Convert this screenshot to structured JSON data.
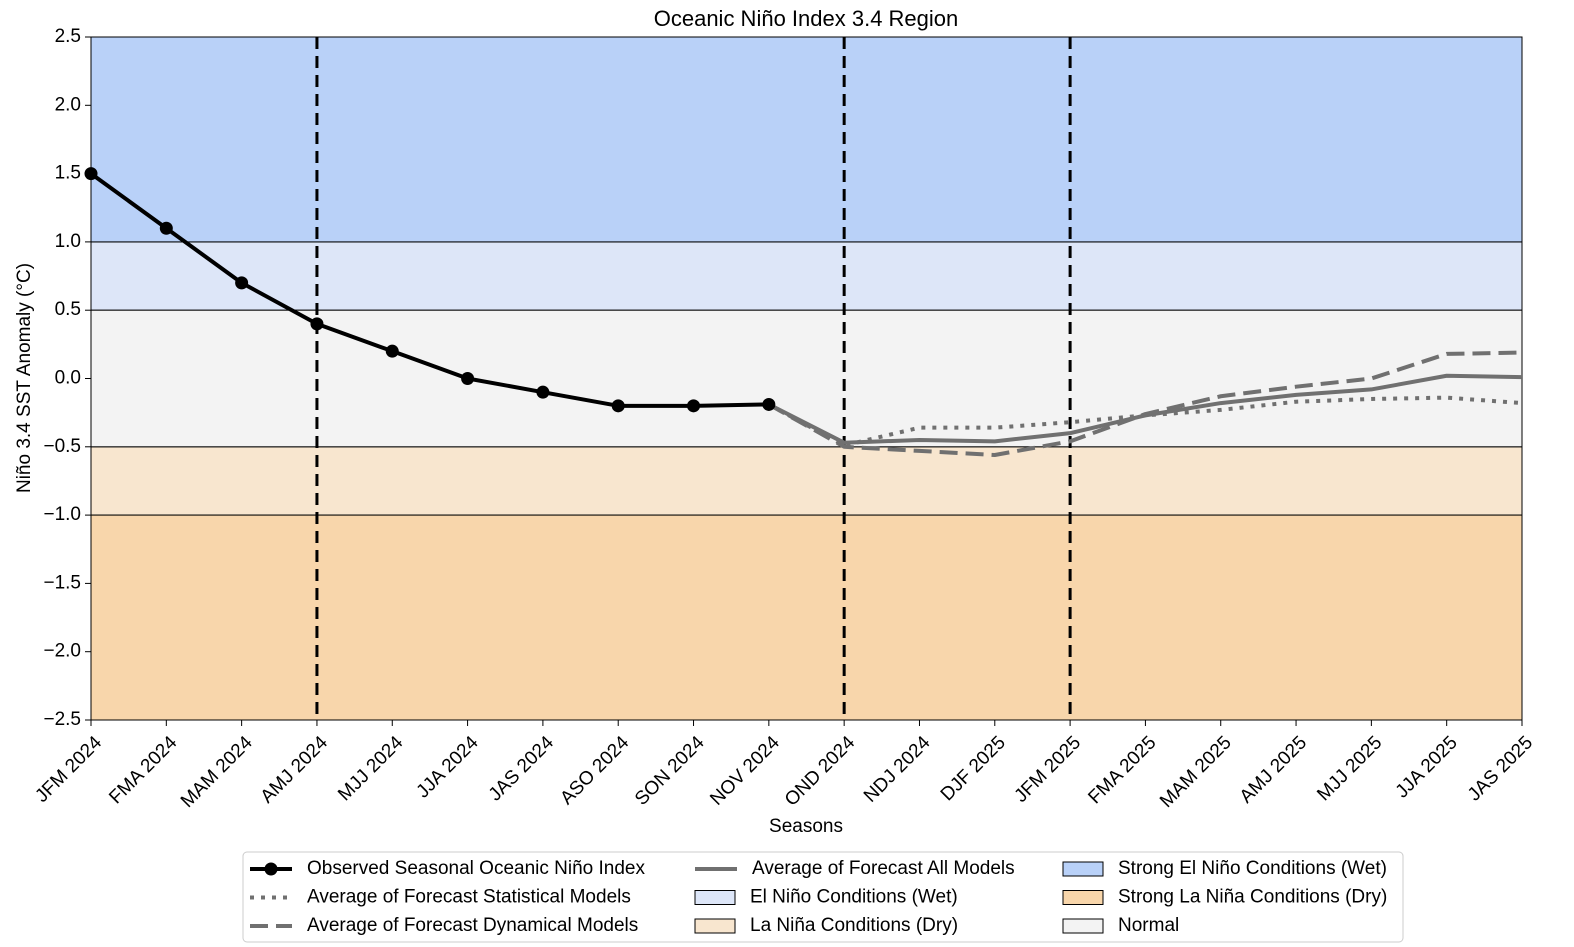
{
  "chart_data": {
    "type": "line",
    "title": "Oceanic Niño Index 3.4 Region",
    "x_label": "Seasons",
    "y_label": "Niño 3.4 SST Anomaly (°C)",
    "categories": [
      "JFM 2024",
      "FMA 2024",
      "MAM 2024",
      "AMJ 2024",
      "MJJ 2024",
      "JJA 2024",
      "JAS 2024",
      "ASO 2024",
      "SON 2024",
      "NOV 2024",
      "OND 2024",
      "NDJ 2024",
      "DJF 2025",
      "JFM 2025",
      "FMA 2025",
      "MAM 2025",
      "AMJ 2025",
      "MJJ 2025",
      "JJA 2025",
      "JAS 2025"
    ],
    "series": [
      {
        "name": "Observed Seasonal Oceanic Niño Index",
        "color": "#000000",
        "style": "solid",
        "markers": true,
        "values": [
          1.5,
          1.1,
          0.7,
          0.4,
          0.2,
          0.0,
          -0.1,
          -0.2,
          -0.2,
          -0.19,
          null,
          null,
          null,
          null,
          null,
          null,
          null,
          null,
          null,
          null
        ]
      },
      {
        "name": "Average of Forecast Statistical Models",
        "color": "#707070",
        "style": "dotted",
        "markers": false,
        "values": [
          null,
          null,
          null,
          null,
          null,
          null,
          null,
          null,
          null,
          -0.19,
          -0.49,
          -0.36,
          -0.36,
          -0.32,
          -0.27,
          -0.23,
          -0.17,
          -0.15,
          -0.14,
          -0.18
        ]
      },
      {
        "name": "Average of Forecast Dynamical Models",
        "color": "#707070",
        "style": "dashed",
        "markers": false,
        "values": [
          null,
          null,
          null,
          null,
          null,
          null,
          null,
          null,
          null,
          -0.19,
          -0.5,
          -0.53,
          -0.56,
          -0.46,
          -0.26,
          -0.13,
          -0.06,
          0.0,
          0.18,
          0.19
        ]
      },
      {
        "name": "Average of Forecast All Models",
        "color": "#707070",
        "style": "solid",
        "markers": false,
        "values": [
          null,
          null,
          null,
          null,
          null,
          null,
          null,
          null,
          null,
          -0.19,
          -0.47,
          -0.45,
          -0.46,
          -0.4,
          -0.27,
          -0.18,
          -0.12,
          -0.08,
          0.02,
          0.01
        ]
      }
    ],
    "bands": [
      {
        "name": "El Niño Conditions (Wet)",
        "color": "#dde6f8",
        "range": [
          0.5,
          1.0
        ]
      },
      {
        "name": "La Niña Conditions (Dry)",
        "color": "#f8e6cf",
        "range": [
          -1.0,
          -0.5
        ]
      },
      {
        "name": "Strong El Niño Conditions (Wet)",
        "color": "#b9d1f8",
        "range": [
          1.0,
          2.5
        ]
      },
      {
        "name": "Strong La Niña Conditions (Dry)",
        "color": "#f8d6ab",
        "range": [
          -2.5,
          -1.0
        ]
      },
      {
        "name": "Normal",
        "color": "#f3f3f3",
        "range": [
          -0.5,
          0.5
        ]
      }
    ],
    "reference_lines": [
      "AMJ 2024",
      "OND 2024",
      "JFM 2025"
    ],
    "ylim": [
      -2.5,
      2.5
    ],
    "yticks": [
      {
        "value": -2.5,
        "label": "−2.5"
      },
      {
        "value": -2.0,
        "label": "−2.0"
      },
      {
        "value": -1.5,
        "label": "−1.5"
      },
      {
        "value": -1.0,
        "label": "−1.0"
      },
      {
        "value": -0.5,
        "label": "−0.5"
      },
      {
        "value": 0.0,
        "label": "0.0"
      },
      0.5,
      {
        "value": 1.0,
        "label": "1.0"
      },
      1.5,
      {
        "value": 2.0,
        "label": "2.0"
      },
      2.5
    ],
    "legend": "lower center"
  }
}
